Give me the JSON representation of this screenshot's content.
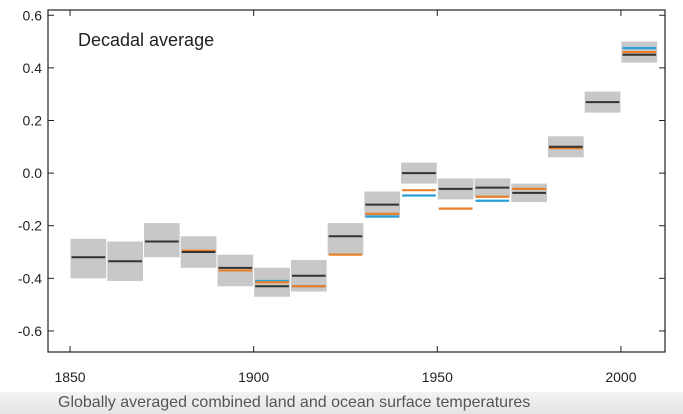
{
  "chart_data": {
    "type": "uncertainty-bars",
    "title": "Decadal average",
    "caption": "Globally averaged combined land and ocean surface temperatures",
    "xlim": [
      1844,
      2012
    ],
    "ylim": [
      -0.68,
      0.62
    ],
    "xticks": [
      1850,
      1900,
      1950,
      2000
    ],
    "yticks": [
      0.6,
      0.4,
      0.2,
      0.0,
      -0.2,
      -0.4,
      -0.6
    ],
    "ytick_labels": [
      "0.6",
      "0.4",
      "0.2",
      "0.0",
      "-0.2",
      "-0.4",
      "-0.6"
    ],
    "series_colors": {
      "series_1": "#333333",
      "series_2": "#e8802a",
      "series_3": "#2a9fd8",
      "uncertainty": "#c8c8c8"
    },
    "decades": [
      {
        "start": 1850,
        "end": 1860,
        "low": -0.4,
        "high": -0.25,
        "series_1": -0.32,
        "series_2": null,
        "series_3": null
      },
      {
        "start": 1860,
        "end": 1870,
        "low": -0.41,
        "high": -0.26,
        "series_1": -0.335,
        "series_2": null,
        "series_3": null
      },
      {
        "start": 1870,
        "end": 1880,
        "low": -0.32,
        "high": -0.19,
        "series_1": -0.26,
        "series_2": null,
        "series_3": null
      },
      {
        "start": 1880,
        "end": 1890,
        "low": -0.36,
        "high": -0.24,
        "series_1": -0.3,
        "series_2": -0.295,
        "series_3": null
      },
      {
        "start": 1890,
        "end": 1900,
        "low": -0.43,
        "high": -0.31,
        "series_1": -0.36,
        "series_2": -0.37,
        "series_3": null
      },
      {
        "start": 1900,
        "end": 1910,
        "low": -0.47,
        "high": -0.36,
        "series_1": -0.43,
        "series_2": -0.415,
        "series_3": -0.41
      },
      {
        "start": 1910,
        "end": 1920,
        "low": -0.45,
        "high": -0.33,
        "series_1": -0.39,
        "series_2": -0.43,
        "series_3": -0.43
      },
      {
        "start": 1920,
        "end": 1930,
        "low": -0.31,
        "high": -0.19,
        "series_1": -0.24,
        "series_2": -0.31,
        "series_3": null
      },
      {
        "start": 1930,
        "end": 1940,
        "low": -0.17,
        "high": -0.07,
        "series_1": -0.12,
        "series_2": -0.155,
        "series_3": -0.165
      },
      {
        "start": 1940,
        "end": 1950,
        "low": -0.04,
        "high": 0.04,
        "series_1": 0.0,
        "series_2": -0.065,
        "series_3": -0.085
      },
      {
        "start": 1950,
        "end": 1960,
        "low": -0.1,
        "high": -0.02,
        "series_1": -0.06,
        "series_2": -0.135,
        "series_3": null
      },
      {
        "start": 1960,
        "end": 1970,
        "low": -0.09,
        "high": -0.02,
        "series_1": -0.055,
        "series_2": -0.09,
        "series_3": -0.105
      },
      {
        "start": 1970,
        "end": 1980,
        "low": -0.11,
        "high": -0.04,
        "series_1": -0.075,
        "series_2": -0.06,
        "series_3": null
      },
      {
        "start": 1980,
        "end": 1990,
        "low": 0.06,
        "high": 0.14,
        "series_1": 0.1,
        "series_2": 0.095,
        "series_3": null
      },
      {
        "start": 1990,
        "end": 2000,
        "low": 0.23,
        "high": 0.31,
        "series_1": 0.27,
        "series_2": null,
        "series_3": null
      },
      {
        "start": 2000,
        "end": 2010,
        "low": 0.42,
        "high": 0.5,
        "series_1": 0.45,
        "series_2": 0.46,
        "series_3": 0.475
      }
    ]
  }
}
